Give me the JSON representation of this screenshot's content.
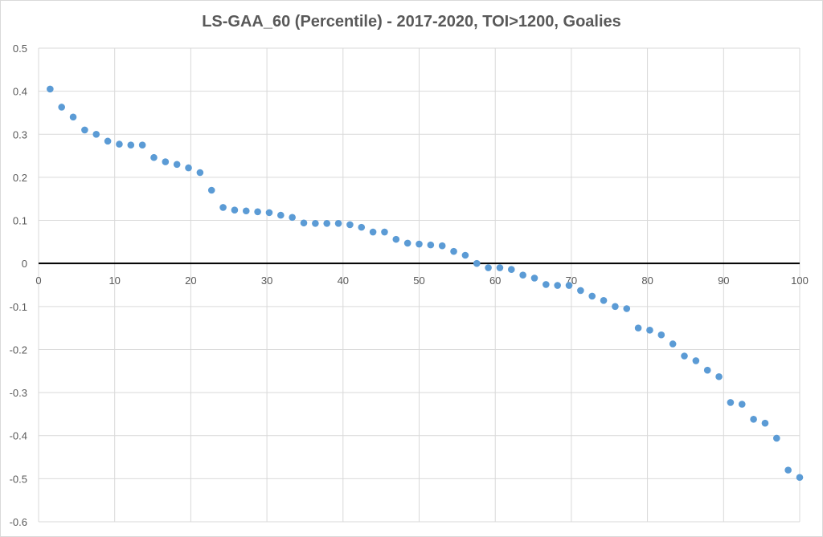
{
  "chart_data": {
    "type": "scatter",
    "title": "LS-GAA_60 (Percentile) - 2017-2020, TOI>1200, Goalies",
    "xlabel": "",
    "ylabel": "",
    "xlim": [
      0,
      100
    ],
    "ylim": [
      -0.6,
      0.5
    ],
    "xticks": [
      "0",
      "10",
      "20",
      "30",
      "40",
      "50",
      "60",
      "70",
      "80",
      "90",
      "100"
    ],
    "yticks": [
      "0.5",
      "0.4",
      "0.3",
      "0.2",
      "0.1",
      "0",
      "-0.1",
      "-0.2",
      "-0.3",
      "-0.4",
      "-0.5",
      "-0.6"
    ],
    "grid": true,
    "legend": "none",
    "series_color": "#5b9bd5",
    "x": "i*100/66 for i=1..66",
    "values": [
      0.405,
      0.363,
      0.34,
      0.31,
      0.3,
      0.284,
      0.277,
      0.275,
      0.275,
      0.246,
      0.236,
      0.23,
      0.222,
      0.211,
      0.17,
      0.13,
      0.124,
      0.122,
      0.12,
      0.118,
      0.112,
      0.107,
      0.094,
      0.093,
      0.093,
      0.093,
      0.09,
      0.084,
      0.073,
      0.073,
      0.056,
      0.047,
      0.045,
      0.043,
      0.041,
      0.028,
      0.019,
      0.0,
      -0.01,
      -0.01,
      -0.014,
      -0.027,
      -0.034,
      -0.049,
      -0.051,
      -0.051,
      -0.063,
      -0.076,
      -0.086,
      -0.1,
      -0.105,
      -0.15,
      -0.155,
      -0.166,
      -0.187,
      -0.215,
      -0.226,
      -0.248,
      -0.263,
      -0.323,
      -0.327,
      -0.362,
      -0.371,
      -0.406,
      -0.48,
      -0.497
    ]
  }
}
